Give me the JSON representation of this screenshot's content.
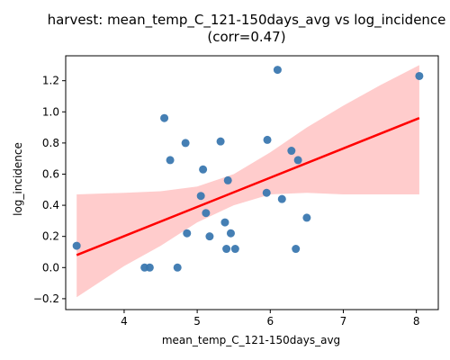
{
  "chart_data": {
    "type": "scatter",
    "title_line1": "harvest: mean_temp_C_121-150days_avg vs log_incidence",
    "title_line2": "(corr=0.47)",
    "xlabel": "mean_temp_C_121-150days_avg",
    "ylabel": "log_incidence",
    "xlim": [
      3.2,
      8.3
    ],
    "ylim": [
      -0.27,
      1.36
    ],
    "x_ticks": [
      4,
      5,
      6,
      7,
      8
    ],
    "y_ticks": [
      -0.2,
      0.0,
      0.2,
      0.4,
      0.6,
      0.8,
      1.0,
      1.2
    ],
    "grid": false,
    "legend": "none",
    "points": [
      {
        "x": 3.35,
        "y": 0.14
      },
      {
        "x": 4.28,
        "y": 0.0
      },
      {
        "x": 4.35,
        "y": 0.0
      },
      {
        "x": 4.55,
        "y": 0.96
      },
      {
        "x": 4.63,
        "y": 0.69
      },
      {
        "x": 4.73,
        "y": 0.0
      },
      {
        "x": 4.84,
        "y": 0.8
      },
      {
        "x": 4.86,
        "y": 0.22
      },
      {
        "x": 5.05,
        "y": 0.46
      },
      {
        "x": 5.08,
        "y": 0.63
      },
      {
        "x": 5.12,
        "y": 0.35
      },
      {
        "x": 5.17,
        "y": 0.2
      },
      {
        "x": 5.32,
        "y": 0.81
      },
      {
        "x": 5.38,
        "y": 0.29
      },
      {
        "x": 5.4,
        "y": 0.12
      },
      {
        "x": 5.42,
        "y": 0.56
      },
      {
        "x": 5.46,
        "y": 0.22
      },
      {
        "x": 5.52,
        "y": 0.12
      },
      {
        "x": 5.95,
        "y": 0.48
      },
      {
        "x": 5.96,
        "y": 0.82
      },
      {
        "x": 6.1,
        "y": 1.27
      },
      {
        "x": 6.16,
        "y": 0.44
      },
      {
        "x": 6.29,
        "y": 0.75
      },
      {
        "x": 6.35,
        "y": 0.12
      },
      {
        "x": 6.38,
        "y": 0.69
      },
      {
        "x": 6.5,
        "y": 0.32
      },
      {
        "x": 8.04,
        "y": 1.23
      }
    ],
    "regression": {
      "x": [
        3.35,
        8.04
      ],
      "y": [
        0.08,
        0.96
      ]
    },
    "confidence_band": {
      "x": [
        3.35,
        4.0,
        4.5,
        5.0,
        5.5,
        6.0,
        6.5,
        7.0,
        7.5,
        8.04
      ],
      "upper": [
        0.47,
        0.48,
        0.49,
        0.52,
        0.6,
        0.74,
        0.9,
        1.04,
        1.17,
        1.3
      ],
      "lower": [
        -0.19,
        0.01,
        0.14,
        0.29,
        0.4,
        0.47,
        0.48,
        0.47,
        0.47,
        0.47
      ]
    },
    "colors": {
      "points": "#3b78b0",
      "regression": "#ff0000",
      "band": "#ffcccc"
    }
  }
}
